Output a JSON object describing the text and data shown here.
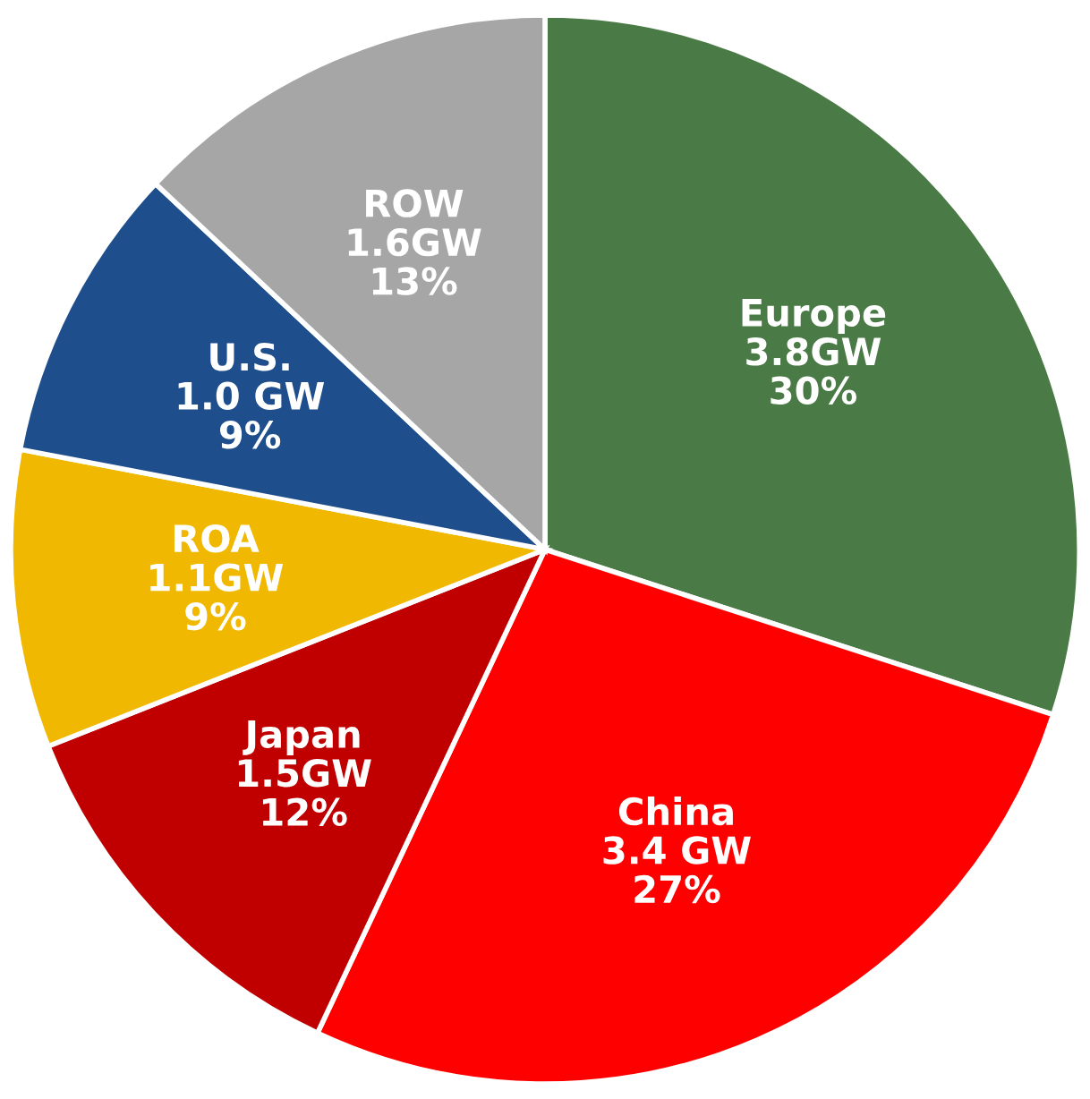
{
  "chart_data": {
    "type": "pie",
    "categories": [
      "Europe",
      "China",
      "Japan",
      "ROA",
      "U.S.",
      "ROW"
    ],
    "values": [
      30,
      27,
      12,
      9,
      9,
      13
    ],
    "value_labels": [
      "3.8GW\n30%",
      "3.4 GW\n27%",
      "1.5GW\n12%",
      "1.1GW\n9%",
      "1.0 GW\n9%",
      "1.6GW\n13%"
    ],
    "colors": [
      "#4a7a45",
      "#ff0000",
      "#c00000",
      "#f0b800",
      "#1f4e8c",
      "#a6a6a6"
    ]
  }
}
